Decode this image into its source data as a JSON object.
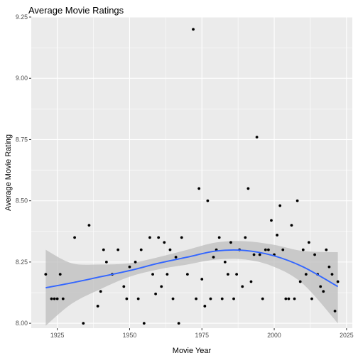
{
  "chart_data": {
    "type": "scatter",
    "title": "Average Movie Ratings",
    "xlabel": "Movie Year",
    "ylabel": "Average Movie Rating",
    "xlim": [
      1916,
      2027
    ],
    "ylim": [
      7.98,
      9.25
    ],
    "x_ticks": [
      1925,
      1950,
      1975,
      2000,
      2025
    ],
    "y_ticks": [
      8.0,
      8.25,
      8.5,
      8.75,
      9.0,
      9.25
    ],
    "y_tick_labels": [
      "8.00",
      "8.25",
      "8.50",
      "8.75",
      "9.00",
      "9.25"
    ],
    "x_tick_labels": [
      "1925",
      "1950",
      "1975",
      "2000",
      "2025"
    ],
    "grid": true,
    "colors": {
      "panel": "#ebebeb",
      "grid": "#ffffff",
      "points": "#000000",
      "smooth": "#3366ff",
      "band": "#bdbdbd"
    },
    "points": [
      [
        1921,
        8.2
      ],
      [
        1923,
        8.1
      ],
      [
        1924,
        8.1
      ],
      [
        1925,
        8.1
      ],
      [
        1926,
        8.2
      ],
      [
        1927,
        8.1
      ],
      [
        1931,
        8.35
      ],
      [
        1934,
        8.0
      ],
      [
        1936,
        8.4
      ],
      [
        1939,
        8.07
      ],
      [
        1940,
        8.13
      ],
      [
        1941,
        8.3
      ],
      [
        1942,
        8.25
      ],
      [
        1944,
        8.2
      ],
      [
        1946,
        8.3
      ],
      [
        1948,
        8.15
      ],
      [
        1949,
        8.1
      ],
      [
        1950,
        8.23
      ],
      [
        1952,
        8.25
      ],
      [
        1953,
        8.1
      ],
      [
        1954,
        8.3
      ],
      [
        1955,
        8.0
      ],
      [
        1957,
        8.35
      ],
      [
        1958,
        8.2
      ],
      [
        1959,
        8.12
      ],
      [
        1960,
        8.35
      ],
      [
        1961,
        8.15
      ],
      [
        1962,
        8.33
      ],
      [
        1963,
        8.2
      ],
      [
        1964,
        8.3
      ],
      [
        1965,
        8.1
      ],
      [
        1966,
        8.27
      ],
      [
        1967,
        8.0
      ],
      [
        1968,
        8.35
      ],
      [
        1970,
        8.2
      ],
      [
        1972,
        9.2
      ],
      [
        1973,
        8.1
      ],
      [
        1974,
        8.55
      ],
      [
        1975,
        8.18
      ],
      [
        1976,
        8.07
      ],
      [
        1977,
        8.5
      ],
      [
        1978,
        8.1
      ],
      [
        1979,
        8.27
      ],
      [
        1980,
        8.3
      ],
      [
        1981,
        8.35
      ],
      [
        1982,
        8.1
      ],
      [
        1983,
        8.25
      ],
      [
        1984,
        8.2
      ],
      [
        1985,
        8.33
      ],
      [
        1986,
        8.1
      ],
      [
        1987,
        8.2
      ],
      [
        1988,
        8.3
      ],
      [
        1989,
        8.15
      ],
      [
        1990,
        8.35
      ],
      [
        1991,
        8.55
      ],
      [
        1992,
        8.17
      ],
      [
        1993,
        8.28
      ],
      [
        1994,
        8.76
      ],
      [
        1995,
        8.28
      ],
      [
        1996,
        8.1
      ],
      [
        1997,
        8.3
      ],
      [
        1998,
        8.3
      ],
      [
        1999,
        8.42
      ],
      [
        2000,
        8.28
      ],
      [
        2001,
        8.36
      ],
      [
        2002,
        8.48
      ],
      [
        2003,
        8.3
      ],
      [
        2004,
        8.1
      ],
      [
        2005,
        8.1
      ],
      [
        2006,
        8.4
      ],
      [
        2007,
        8.1
      ],
      [
        2008,
        8.5
      ],
      [
        2009,
        8.17
      ],
      [
        2010,
        8.3
      ],
      [
        2011,
        8.2
      ],
      [
        2012,
        8.33
      ],
      [
        2013,
        8.1
      ],
      [
        2014,
        8.28
      ],
      [
        2015,
        8.2
      ],
      [
        2016,
        8.15
      ],
      [
        2017,
        8.13
      ],
      [
        2018,
        8.3
      ],
      [
        2019,
        8.23
      ],
      [
        2020,
        8.2
      ],
      [
        2021,
        8.05
      ],
      [
        2022,
        8.17
      ]
    ],
    "smooth": {
      "x": [
        1921,
        1930,
        1940,
        1950,
        1960,
        1970,
        1980,
        1990,
        2000,
        2010,
        2022
      ],
      "y": [
        8.145,
        8.165,
        8.19,
        8.215,
        8.245,
        8.27,
        8.295,
        8.297,
        8.275,
        8.23,
        8.15
      ],
      "lower": [
        7.99,
        8.08,
        8.14,
        8.19,
        8.22,
        8.24,
        8.26,
        8.26,
        8.23,
        8.16,
        8.0
      ],
      "upper": [
        8.3,
        8.245,
        8.24,
        8.245,
        8.27,
        8.3,
        8.33,
        8.335,
        8.32,
        8.295,
        8.29
      ]
    }
  }
}
